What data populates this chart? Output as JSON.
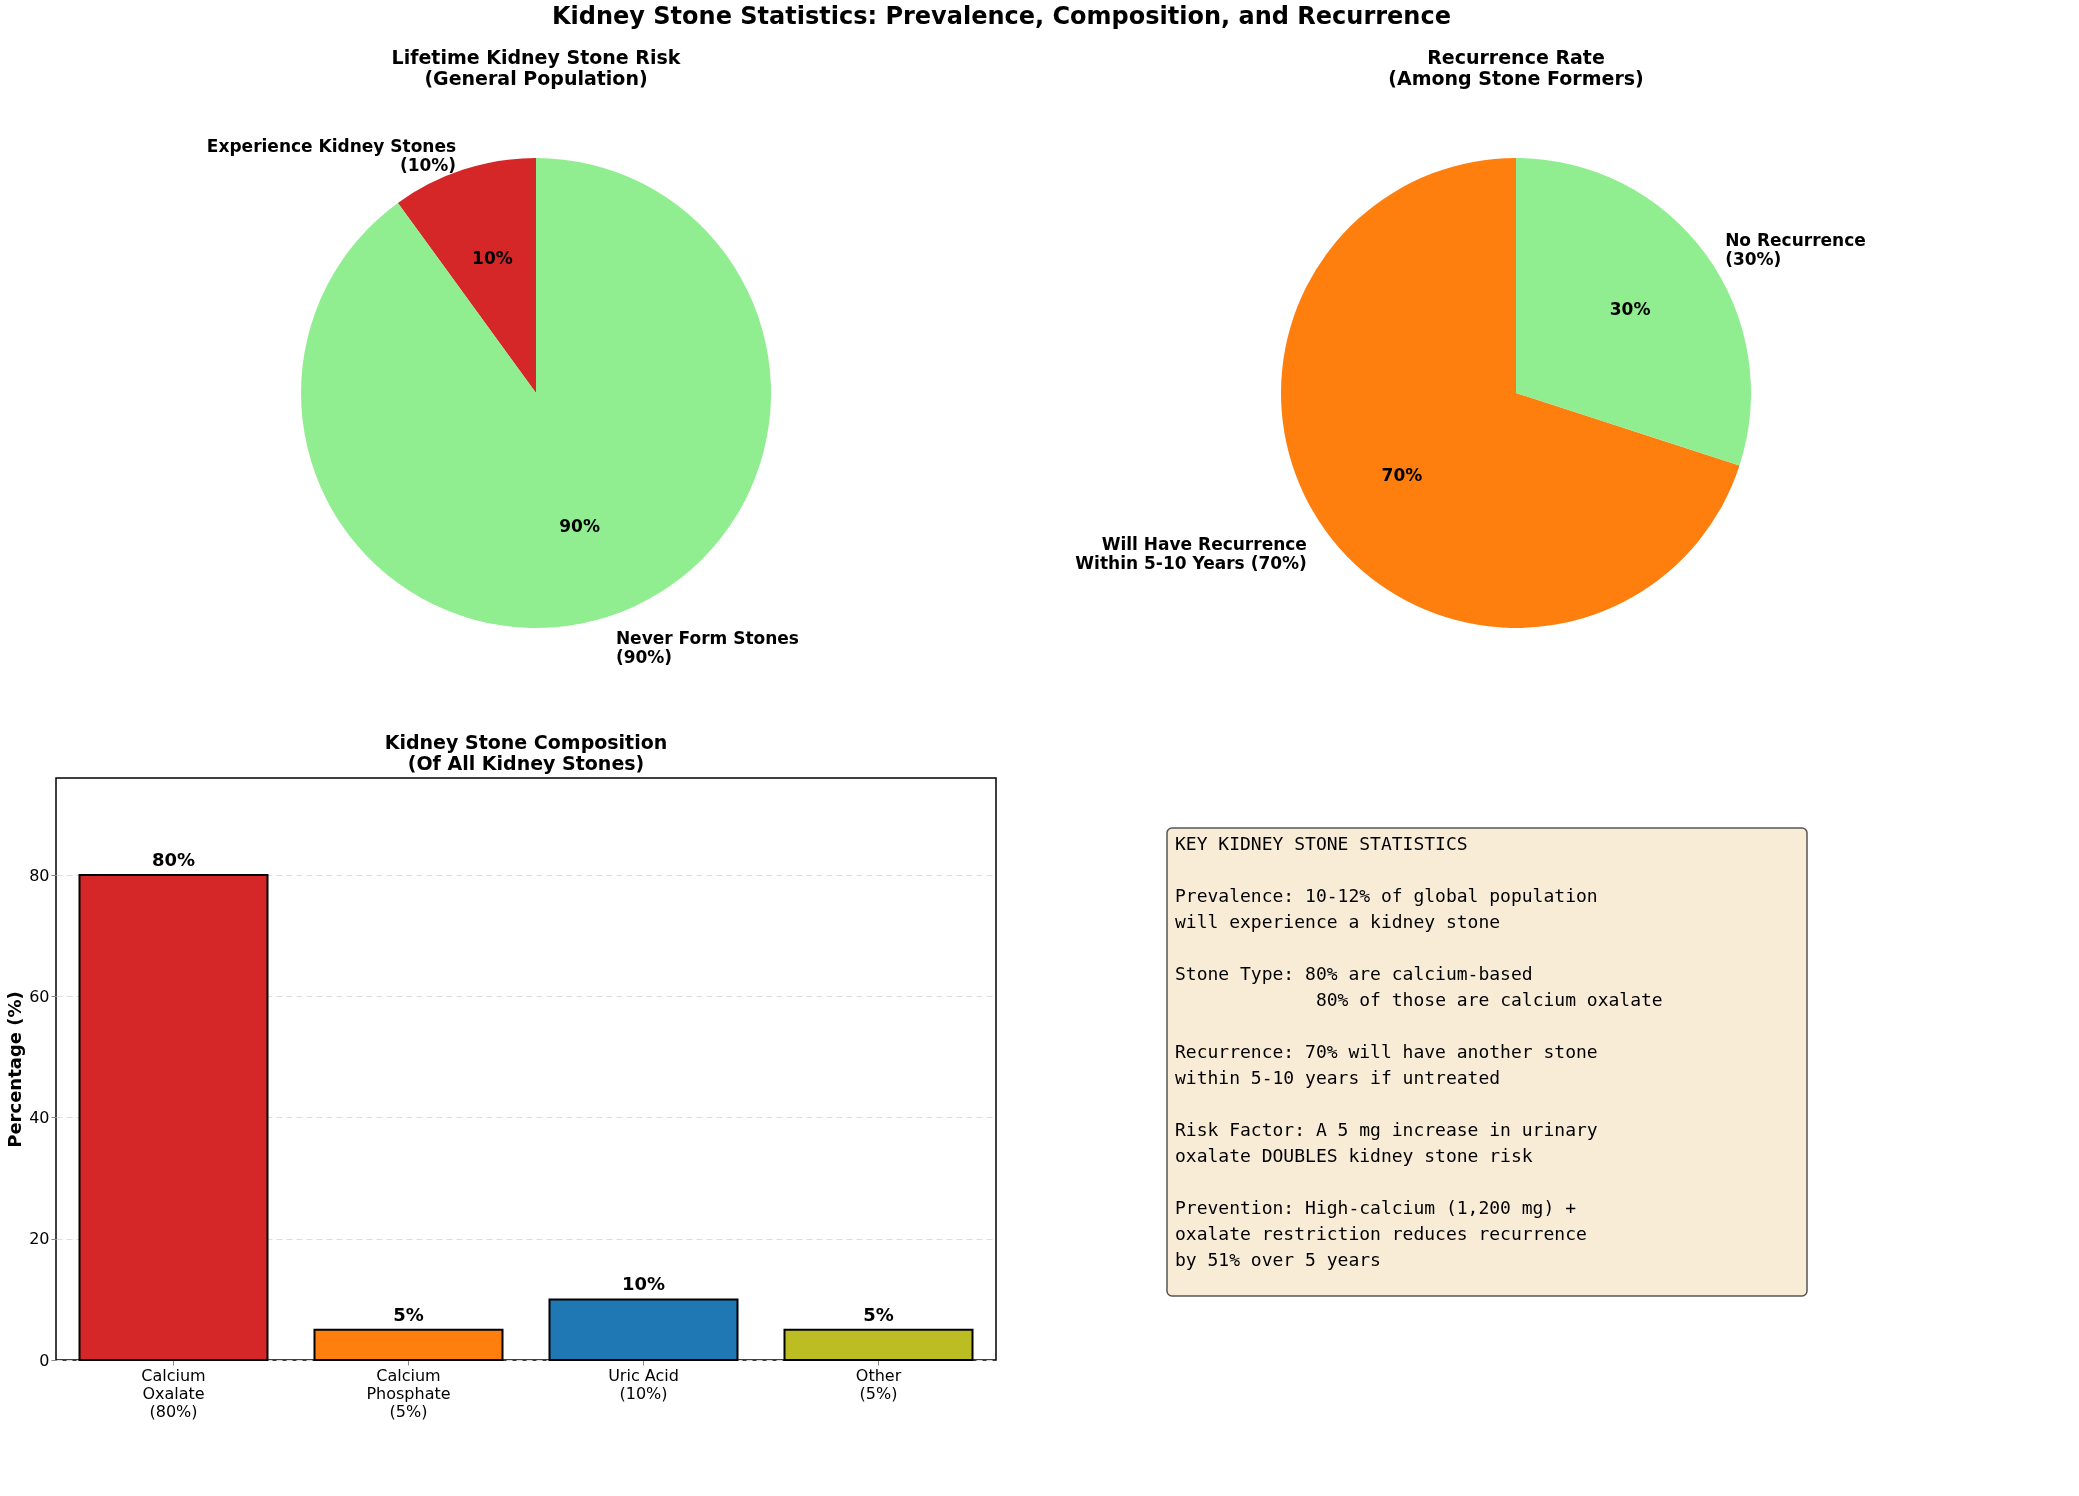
{
  "chart_data": [
    {
      "type": "other",
      "title": "Kidney Stone Statistics: Prevalence, Composition, and Recurrence"
    },
    {
      "type": "pie",
      "title": "Lifetime Kidney Stone Risk\n(General Population)",
      "categories": [
        "Experience Kidney Stones\n(10%)",
        "Never Form Stones\n(90%)"
      ],
      "values": [
        10,
        90
      ],
      "colors": [
        "#d62728",
        "#90ee90"
      ],
      "value_labels": [
        "10%",
        "90%"
      ]
    },
    {
      "type": "pie",
      "title": "Recurrence Rate\n(Among Stone Formers)",
      "categories": [
        "Will Have Recurrence\nWithin 5-10 Years (70%)",
        "No Recurrence\n(30%)"
      ],
      "values": [
        70,
        30
      ],
      "colors": [
        "#ff7f0e",
        "#90ee90"
      ],
      "value_labels": [
        "70%",
        "30%"
      ]
    },
    {
      "type": "bar",
      "title": "Kidney Stone Composition\n(Of All Kidney Stones)",
      "ylabel": "Percentage (%)",
      "categories": [
        "Calcium\nOxalate\n(80%)",
        "Calcium\nPhosphate\n(5%)",
        "Uric Acid\n(10%)",
        "Other\n(5%)"
      ],
      "values": [
        80,
        5,
        10,
        5
      ],
      "colors": [
        "#d62728",
        "#ff7f0e",
        "#1f77b4",
        "#bcbd22"
      ],
      "ylim": [
        0,
        96
      ],
      "yticks": [
        0,
        20,
        40,
        60,
        80
      ],
      "grid": "y",
      "value_labels": [
        "80%",
        "5%",
        "10%",
        "5%"
      ]
    },
    {
      "type": "other",
      "annotations": [
        "KEY KIDNEY STONE STATISTICS",
        "Prevalence: 10-12% of global population\nwill experience a kidney stone",
        "Stone Type: 80% are calcium-based\n             80% of those are calcium oxalate",
        "Recurrence: 70% will have another stone\nwithin 5-10 years if untreated",
        "Risk Factor: A 5 mg increase in urinary\noxalate DOUBLES kidney stone risk",
        "Prevention: High-calcium (1,200 mg) +\noxalate restriction reduces recurrence\nby 51% over 5 years"
      ]
    }
  ]
}
